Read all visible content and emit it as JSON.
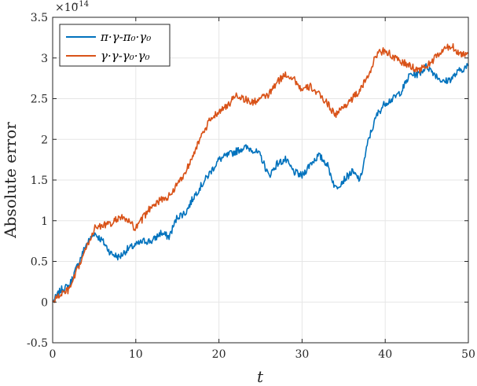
{
  "chart_data": {
    "type": "line",
    "title": "",
    "xlabel": "t",
    "ylabel": "Absolute error",
    "xlim": [
      0,
      50
    ],
    "ylim": [
      -0.5,
      3.5
    ],
    "y_exponent_label": "×10",
    "y_exponent_power": "−14",
    "x_ticks": [
      "0",
      "10",
      "20",
      "30",
      "40",
      "50"
    ],
    "y_ticks": [
      "-0.5",
      "0",
      "0.5",
      "1",
      "1.5",
      "2",
      "2.5",
      "3",
      "3.5"
    ],
    "grid": true,
    "legend_position": "top-left",
    "series": [
      {
        "name": "π·γ-π₀·γ₀",
        "color": "#0072BD",
        "x": [
          0,
          1,
          2,
          3,
          4,
          5,
          6,
          7,
          8,
          9,
          10,
          11,
          12,
          13,
          14,
          15,
          16,
          17,
          18,
          19,
          20,
          21,
          22,
          23,
          24,
          25,
          26,
          27,
          28,
          29,
          30,
          31,
          32,
          33,
          34,
          35,
          36,
          37,
          38,
          39,
          40,
          41,
          42,
          43,
          44,
          45,
          46,
          47,
          48,
          49,
          50
        ],
        "y": [
          0.0,
          0.15,
          0.2,
          0.45,
          0.7,
          0.85,
          0.75,
          0.6,
          0.55,
          0.65,
          0.7,
          0.75,
          0.75,
          0.85,
          0.8,
          1.05,
          1.1,
          1.3,
          1.45,
          1.6,
          1.75,
          1.8,
          1.85,
          1.9,
          1.88,
          1.8,
          1.55,
          1.7,
          1.75,
          1.6,
          1.55,
          1.7,
          1.8,
          1.7,
          1.4,
          1.5,
          1.6,
          1.5,
          2.0,
          2.3,
          2.45,
          2.5,
          2.6,
          2.8,
          2.8,
          2.9,
          2.8,
          2.7,
          2.75,
          2.85,
          2.9
        ]
      },
      {
        "name": "γ·γ-γ₀·γ₀",
        "color": "#D95319",
        "x": [
          0,
          1,
          2,
          3,
          4,
          5,
          6,
          7,
          8,
          9,
          10,
          11,
          12,
          13,
          14,
          15,
          16,
          17,
          18,
          19,
          20,
          21,
          22,
          23,
          24,
          25,
          26,
          27,
          28,
          29,
          30,
          31,
          32,
          33,
          34,
          35,
          36,
          37,
          38,
          39,
          40,
          41,
          42,
          43,
          44,
          45,
          46,
          47,
          48,
          49,
          50
        ],
        "y": [
          0.0,
          0.1,
          0.15,
          0.4,
          0.65,
          0.9,
          0.95,
          0.95,
          1.05,
          1.0,
          0.9,
          1.05,
          1.2,
          1.25,
          1.3,
          1.45,
          1.6,
          1.85,
          2.05,
          2.25,
          2.35,
          2.4,
          2.55,
          2.5,
          2.45,
          2.5,
          2.55,
          2.7,
          2.8,
          2.75,
          2.6,
          2.65,
          2.55,
          2.45,
          2.3,
          2.4,
          2.5,
          2.6,
          2.8,
          3.05,
          3.1,
          3.0,
          2.95,
          2.9,
          2.85,
          2.9,
          3.0,
          3.1,
          3.15,
          3.05,
          3.05
        ]
      }
    ]
  }
}
